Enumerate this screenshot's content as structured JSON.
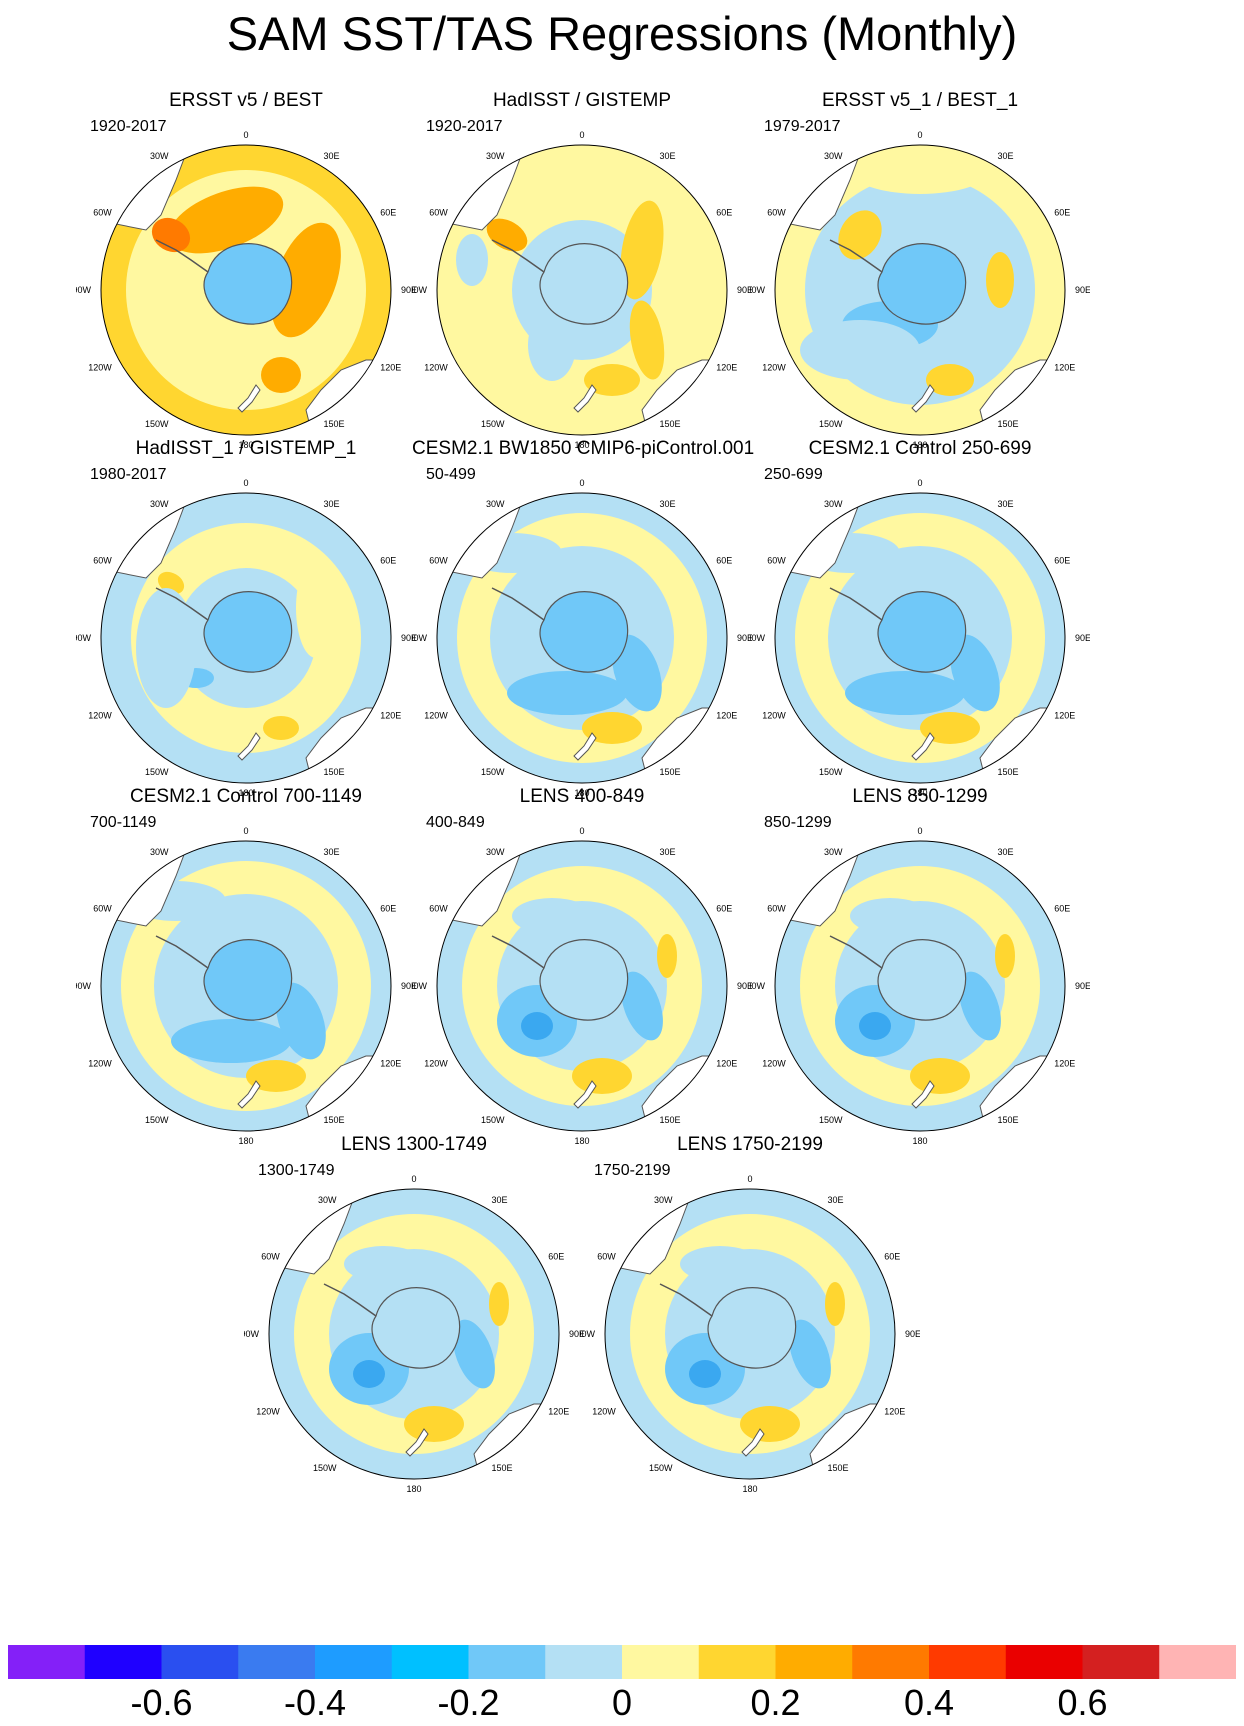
{
  "title": "SAM SST/TAS Regressions (Monthly)",
  "longitude_labels": [
    "0",
    "30E",
    "60E",
    "90E",
    "120E",
    "150E",
    "180",
    "150W",
    "120W",
    "90W",
    "60W",
    "30W"
  ],
  "panels": [
    {
      "title": "ERSST v5 / BEST",
      "period": "1920-2017",
      "anomaly": "obs_warm"
    },
    {
      "title": "HadISST / GISTEMP",
      "period": "1920-2017",
      "anomaly": "obs_mild"
    },
    {
      "title": "ERSST v5_1 / BEST_1",
      "period": "1979-2017",
      "anomaly": "obs_recent"
    },
    {
      "title": "HadISST_1 / GISTEMP_1",
      "period": "1980-2017",
      "anomaly": "obs_recent2"
    },
    {
      "title": "CESM2.1 BW1850 CMIP6-piControl.001",
      "period": "50-499",
      "anomaly": "model"
    },
    {
      "title": "CESM2.1 Control 250-699",
      "period": "250-699",
      "anomaly": "model"
    },
    {
      "title": "CESM2.1 Control 700-1149",
      "period": "700-1149",
      "anomaly": "model"
    },
    {
      "title": "LENS 400-849",
      "period": "400-849",
      "anomaly": "lens"
    },
    {
      "title": "LENS 850-1299",
      "period": "850-1299",
      "anomaly": "lens"
    },
    {
      "title": "LENS 1300-1749",
      "period": "1300-1749",
      "anomaly": "lens"
    },
    {
      "title": "LENS 1750-2199",
      "period": "1750-2199",
      "anomaly": "lens"
    }
  ],
  "colorbar": {
    "colors": [
      "#8420f8",
      "#1f00ff",
      "#2a4ff0",
      "#3a7bf0",
      "#1e9cff",
      "#00c0ff",
      "#70c8f8",
      "#b4e0f4",
      "#fff8a0",
      "#ffd630",
      "#ffac00",
      "#ff7a00",
      "#ff3a00",
      "#ea0000",
      "#d42020",
      "#ffb4b4"
    ],
    "tick_labels": [
      "-0.6",
      "-0.4",
      "-0.2",
      "0",
      "0.2",
      "0.4",
      "0.6"
    ]
  }
}
